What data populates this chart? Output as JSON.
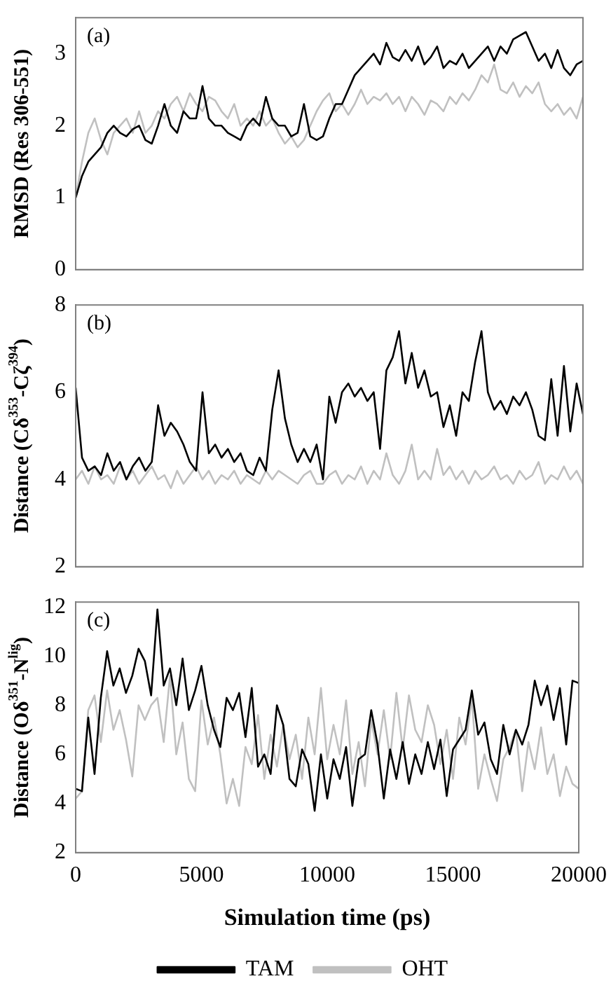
{
  "chart_data": [
    {
      "type": "line",
      "annotations": [
        "(a)"
      ],
      "ylabel": "RMSD (Res 306-551)",
      "tick_labels": "y",
      "xlim": [
        0,
        20000
      ],
      "ylim": [
        0,
        3.5
      ],
      "yticks": [
        0,
        1,
        2,
        3
      ],
      "grid": false,
      "legend": false,
      "marker": "none",
      "line_style": "solid",
      "x": [
        0,
        250,
        500,
        750,
        1000,
        1250,
        1500,
        1750,
        2000,
        2250,
        2500,
        2750,
        3000,
        3250,
        3500,
        3750,
        4000,
        4250,
        4500,
        4750,
        5000,
        5250,
        5500,
        5750,
        6000,
        6250,
        6500,
        6750,
        7000,
        7250,
        7500,
        7750,
        8000,
        8250,
        8500,
        8750,
        9000,
        9250,
        9500,
        9750,
        10000,
        10250,
        10500,
        10750,
        11000,
        11250,
        11500,
        11750,
        12000,
        12250,
        12500,
        12750,
        13000,
        13250,
        13500,
        13750,
        14000,
        14250,
        14500,
        14750,
        15000,
        15250,
        15500,
        15750,
        16000,
        16250,
        16500,
        16750,
        17000,
        17250,
        17500,
        17750,
        18000,
        18250,
        18500,
        18750,
        19000,
        19250,
        19500,
        19750,
        20000
      ],
      "series": [
        {
          "color": "#000000",
          "values": [
            1.0,
            1.3,
            1.5,
            1.6,
            1.7,
            1.9,
            2.0,
            1.9,
            1.85,
            1.95,
            2.0,
            1.8,
            1.75,
            2.0,
            2.3,
            2.0,
            1.9,
            2.2,
            2.1,
            2.1,
            2.55,
            2.1,
            2.0,
            2.0,
            1.9,
            1.85,
            1.8,
            2.0,
            2.1,
            2.0,
            2.4,
            2.1,
            2.0,
            2.0,
            1.85,
            1.9,
            2.3,
            1.85,
            1.8,
            1.85,
            2.1,
            2.3,
            2.3,
            2.5,
            2.7,
            2.8,
            2.9,
            3.0,
            2.85,
            3.15,
            2.95,
            2.9,
            3.05,
            2.9,
            3.1,
            2.85,
            2.95,
            3.1,
            2.8,
            2.9,
            2.85,
            3.0,
            2.8,
            2.9,
            3.0,
            3.1,
            2.9,
            3.1,
            3.0,
            3.2,
            3.25,
            3.3,
            3.1,
            2.9,
            3.0,
            2.8,
            3.05,
            2.8,
            2.7,
            2.85,
            2.9
          ]
        },
        {
          "color": "#c0c0c0",
          "values": [
            1.0,
            1.5,
            1.9,
            2.1,
            1.8,
            1.6,
            1.9,
            2.0,
            2.1,
            1.9,
            2.2,
            1.9,
            2.0,
            2.2,
            2.1,
            2.3,
            2.4,
            2.2,
            2.45,
            2.3,
            2.2,
            2.4,
            2.35,
            2.2,
            2.1,
            2.3,
            2.0,
            2.1,
            2.0,
            2.2,
            2.0,
            2.1,
            1.9,
            1.75,
            1.85,
            1.7,
            1.8,
            2.0,
            2.2,
            2.35,
            2.45,
            2.2,
            2.3,
            2.15,
            2.3,
            2.5,
            2.3,
            2.4,
            2.35,
            2.45,
            2.3,
            2.4,
            2.2,
            2.4,
            2.3,
            2.15,
            2.35,
            2.3,
            2.2,
            2.4,
            2.3,
            2.45,
            2.35,
            2.5,
            2.7,
            2.6,
            2.85,
            2.5,
            2.45,
            2.6,
            2.4,
            2.55,
            2.45,
            2.6,
            2.3,
            2.2,
            2.3,
            2.15,
            2.25,
            2.1,
            2.4
          ]
        }
      ]
    },
    {
      "type": "line",
      "annotations": [
        "(b)"
      ],
      "ylabel": "Distance (Cδ$^{353}$-Cζ$^{394}$)",
      "tick_labels": "y",
      "xlim": [
        0,
        20000
      ],
      "ylim": [
        2,
        8
      ],
      "yticks": [
        2,
        4,
        6,
        8
      ],
      "grid": false,
      "legend": false,
      "marker": "none",
      "line_style": "solid",
      "x": [
        0,
        250,
        500,
        750,
        1000,
        1250,
        1500,
        1750,
        2000,
        2250,
        2500,
        2750,
        3000,
        3250,
        3500,
        3750,
        4000,
        4250,
        4500,
        4750,
        5000,
        5250,
        5500,
        5750,
        6000,
        6250,
        6500,
        6750,
        7000,
        7250,
        7500,
        7750,
        8000,
        8250,
        8500,
        8750,
        9000,
        9250,
        9500,
        9750,
        10000,
        10250,
        10500,
        10750,
        11000,
        11250,
        11500,
        11750,
        12000,
        12250,
        12500,
        12750,
        13000,
        13250,
        13500,
        13750,
        14000,
        14250,
        14500,
        14750,
        15000,
        15250,
        15500,
        15750,
        16000,
        16250,
        16500,
        16750,
        17000,
        17250,
        17500,
        17750,
        18000,
        18250,
        18500,
        18750,
        19000,
        19250,
        19500,
        19750,
        20000
      ],
      "series": [
        {
          "color": "#000000",
          "values": [
            6.1,
            4.5,
            4.2,
            4.3,
            4.1,
            4.6,
            4.2,
            4.4,
            4.0,
            4.3,
            4.5,
            4.2,
            4.4,
            5.7,
            5.0,
            5.3,
            5.1,
            4.8,
            4.4,
            4.2,
            6.0,
            4.6,
            4.8,
            4.5,
            4.7,
            4.4,
            4.6,
            4.2,
            4.1,
            4.5,
            4.2,
            5.6,
            6.5,
            5.4,
            4.8,
            4.4,
            4.7,
            4.4,
            4.8,
            4.0,
            5.9,
            5.3,
            6.0,
            6.2,
            5.9,
            6.1,
            5.8,
            6.0,
            4.7,
            6.5,
            6.8,
            7.4,
            6.2,
            6.9,
            6.1,
            6.5,
            5.9,
            6.0,
            5.2,
            5.7,
            5.0,
            6.0,
            5.8,
            6.7,
            7.4,
            6.0,
            5.6,
            5.8,
            5.5,
            5.9,
            5.7,
            6.0,
            5.6,
            5.0,
            4.9,
            6.3,
            5.0,
            6.6,
            5.1,
            6.2,
            5.5
          ]
        },
        {
          "color": "#c0c0c0",
          "values": [
            4.0,
            4.2,
            3.9,
            4.3,
            4.0,
            4.1,
            3.9,
            4.3,
            4.0,
            4.2,
            3.9,
            4.1,
            4.3,
            4.0,
            4.1,
            3.8,
            4.2,
            3.9,
            4.1,
            4.3,
            4.0,
            4.2,
            3.9,
            4.1,
            4.0,
            4.2,
            3.9,
            4.1,
            4.0,
            3.9,
            4.2,
            4.0,
            4.2,
            4.1,
            4.0,
            3.9,
            4.1,
            4.2,
            3.9,
            3.9,
            4.1,
            4.2,
            3.9,
            4.1,
            4.0,
            4.3,
            3.9,
            4.2,
            4.0,
            4.6,
            4.1,
            3.9,
            4.2,
            4.8,
            4.0,
            4.2,
            4.0,
            4.7,
            4.1,
            4.3,
            4.0,
            4.2,
            3.9,
            4.2,
            4.0,
            4.1,
            4.3,
            4.0,
            4.1,
            3.9,
            4.2,
            4.0,
            4.1,
            4.4,
            3.9,
            4.1,
            4.0,
            4.3,
            4.0,
            4.2,
            3.9
          ]
        }
      ]
    },
    {
      "type": "line",
      "annotations": [
        "(c)"
      ],
      "xlabel": "Simulation time (ps)",
      "ylabel": "Distance (Oδ$^{351}$-N$^{lig}$)",
      "xlim": [
        0,
        20000
      ],
      "xticks": [
        0,
        5000,
        10000,
        15000,
        20000
      ],
      "ylim": [
        2,
        12.2
      ],
      "yticks": [
        2,
        4,
        6,
        8,
        10,
        12
      ],
      "grid": false,
      "legend": "bottom",
      "marker": "none",
      "line_style": "solid",
      "x": [
        0,
        250,
        500,
        750,
        1000,
        1250,
        1500,
        1750,
        2000,
        2250,
        2500,
        2750,
        3000,
        3250,
        3500,
        3750,
        4000,
        4250,
        4500,
        4750,
        5000,
        5250,
        5500,
        5750,
        6000,
        6250,
        6500,
        6750,
        7000,
        7250,
        7500,
        7750,
        8000,
        8250,
        8500,
        8750,
        9000,
        9250,
        9500,
        9750,
        10000,
        10250,
        10500,
        10750,
        11000,
        11250,
        11500,
        11750,
        12000,
        12250,
        12500,
        12750,
        13000,
        13250,
        13500,
        13750,
        14000,
        14250,
        14500,
        14750,
        15000,
        15250,
        15500,
        15750,
        16000,
        16250,
        16500,
        16750,
        17000,
        17250,
        17500,
        17750,
        18000,
        18250,
        18500,
        18750,
        19000,
        19250,
        19500,
        19750,
        20000
      ],
      "series": [
        {
          "name": "TAM",
          "color": "#000000",
          "values": [
            4.6,
            4.5,
            7.5,
            5.2,
            8.3,
            10.2,
            8.8,
            9.5,
            8.5,
            9.2,
            10.3,
            9.8,
            8.4,
            11.9,
            8.8,
            9.5,
            8.0,
            9.9,
            7.8,
            8.6,
            9.6,
            8.0,
            7.0,
            6.3,
            8.3,
            7.8,
            8.5,
            6.7,
            8.7,
            5.5,
            6.0,
            5.2,
            8.0,
            7.2,
            5.0,
            4.7,
            6.2,
            5.6,
            3.7,
            6.0,
            4.2,
            5.8,
            5.0,
            6.3,
            3.9,
            5.8,
            6.0,
            7.8,
            6.4,
            4.2,
            6.2,
            5.0,
            6.5,
            4.8,
            6.0,
            5.2,
            6.5,
            5.4,
            6.6,
            4.3,
            6.2,
            6.6,
            7.0,
            8.6,
            6.8,
            7.3,
            5.8,
            5.2,
            7.2,
            6.0,
            7.0,
            6.4,
            7.2,
            9.0,
            8.0,
            8.8,
            7.4,
            8.7,
            6.4,
            9.0,
            8.9
          ]
        },
        {
          "name": "OHT",
          "color": "#c0c0c0",
          "values": [
            4.2,
            4.5,
            7.8,
            8.4,
            6.5,
            8.6,
            7.0,
            7.8,
            6.6,
            5.1,
            8.0,
            7.4,
            8.0,
            8.3,
            6.5,
            9.2,
            6.0,
            7.3,
            5.0,
            4.5,
            8.2,
            6.4,
            7.5,
            6.0,
            4.0,
            5.0,
            3.9,
            6.3,
            5.6,
            7.6,
            5.0,
            6.8,
            5.5,
            7.2,
            5.8,
            6.8,
            5.0,
            7.5,
            6.0,
            8.7,
            5.8,
            7.2,
            6.0,
            8.2,
            5.2,
            6.5,
            4.7,
            7.4,
            6.0,
            7.8,
            5.8,
            8.5,
            6.2,
            8.4,
            7.0,
            6.5,
            8.0,
            7.2,
            5.6,
            7.0,
            5.0,
            7.5,
            6.4,
            8.3,
            4.6,
            6.0,
            5.0,
            4.1,
            5.8,
            6.3,
            7.0,
            4.5,
            6.5,
            5.4,
            7.1,
            5.2,
            6.0,
            4.3,
            5.5,
            4.8,
            4.6
          ]
        }
      ]
    }
  ]
}
